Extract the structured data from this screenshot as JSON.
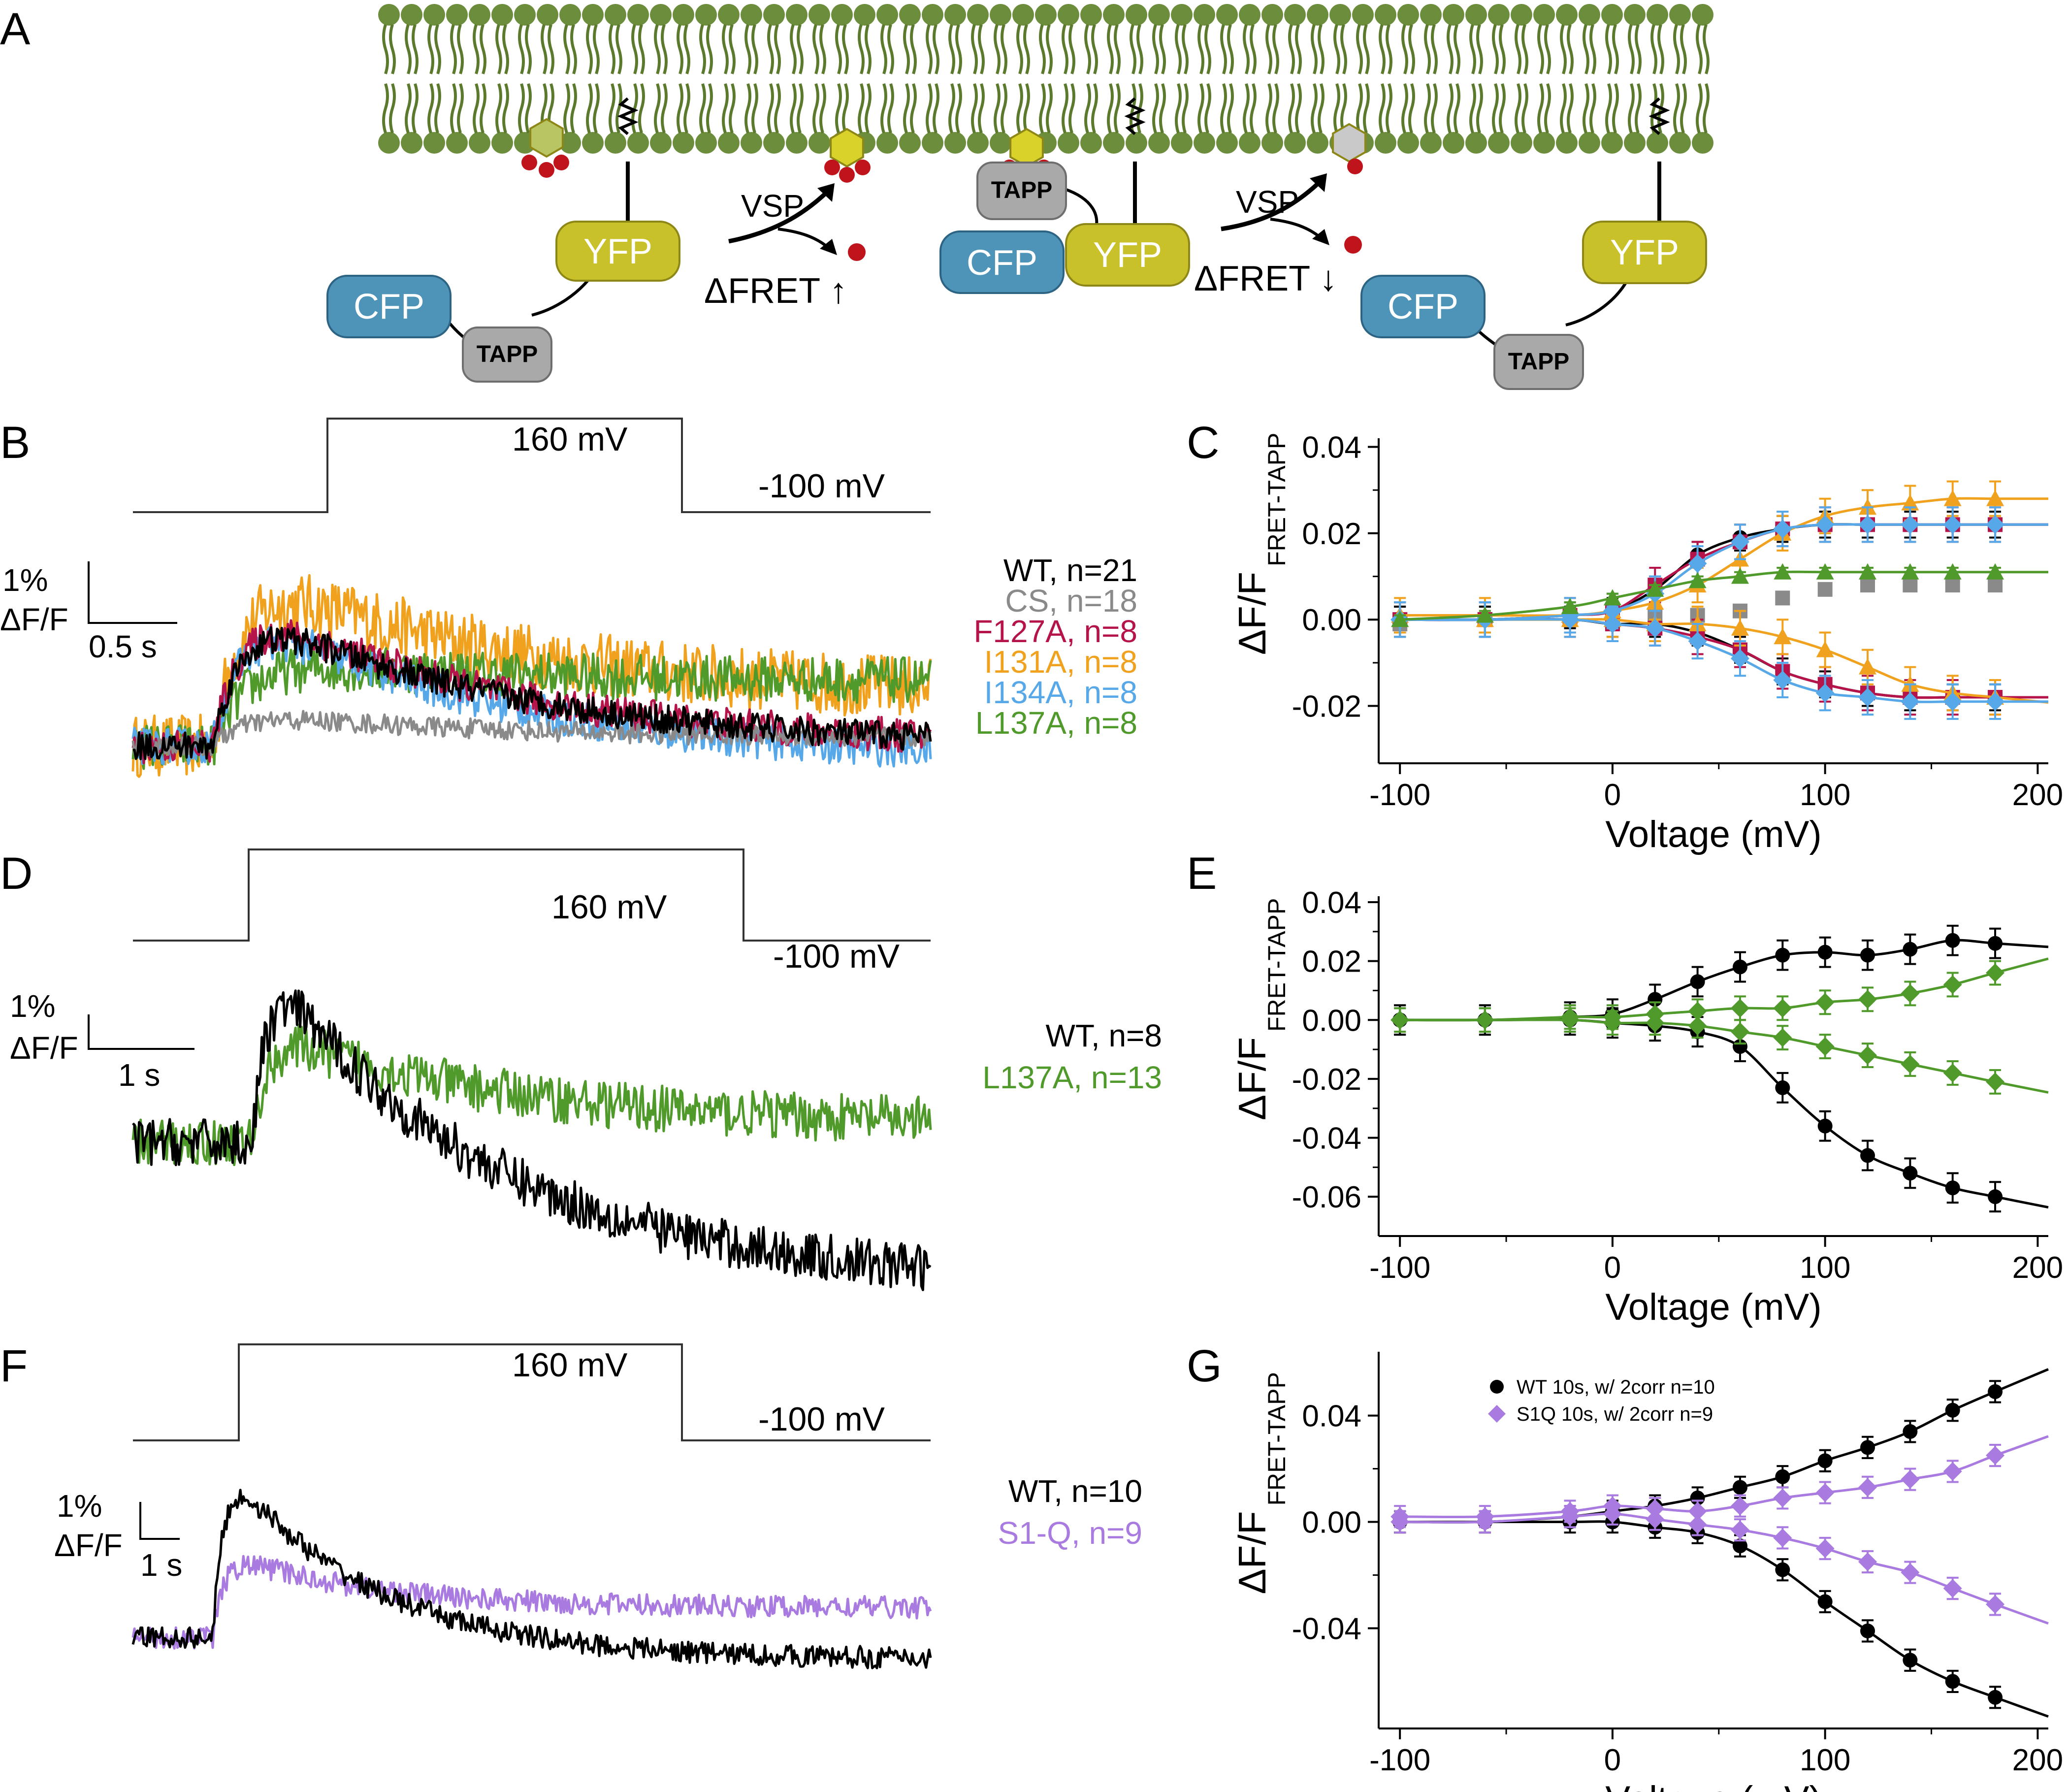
{
  "colors": {
    "membrane": "#5b7a2e",
    "membrane_head": "#6c8d3b",
    "cfp": "#4e93b8",
    "yfp": "#c9c12a",
    "tapp": "#a9a9a9",
    "pip": "#d8d22a",
    "phosphate": "#c0141c",
    "wt": "#000000",
    "cs": "#8a8a8a",
    "f127a": "#b5144a",
    "i131a": "#f0a21e",
    "i134a": "#57a8e8",
    "l137a": "#4f9a2a",
    "s1q": "#a97be0"
  },
  "panel_labels": {
    "a": "A",
    "b": "B",
    "c": "C",
    "d": "D",
    "e": "E",
    "f": "F",
    "g": "G"
  },
  "schematic": {
    "cfp": "CFP",
    "yfp": "YFP",
    "tapp": "TAPP",
    "vsp": "VSP",
    "fret_up": "ΔFRET ↑",
    "fret_down": "ΔFRET ↓"
  },
  "protocol": {
    "step": "160 mV",
    "hold": "-100 mV"
  },
  "scale_bars": {
    "b": {
      "y": "1%",
      "y2": "ΔF/F",
      "x": "0.5 s"
    },
    "d": {
      "y": "1%",
      "y2": "ΔF/F",
      "x": "1 s"
    },
    "f": {
      "y": "1%",
      "y2": "ΔF/F",
      "x": "1 s"
    }
  },
  "legends": {
    "b": [
      {
        "label": "WT, n=21",
        "color": "#000000"
      },
      {
        "label": "CS, n=18",
        "color": "#8a8a8a"
      },
      {
        "label": "F127A, n=8",
        "color": "#b5144a"
      },
      {
        "label": "I131A, n=8",
        "color": "#f0a21e"
      },
      {
        "label": "I134A, n=8",
        "color": "#57a8e8"
      },
      {
        "label": "L137A, n=8",
        "color": "#4f9a2a"
      }
    ],
    "d": [
      {
        "label": "WT, n=8",
        "color": "#000000"
      },
      {
        "label": "L137A, n=13",
        "color": "#4f9a2a"
      }
    ],
    "f": [
      {
        "label": "WT, n=10",
        "color": "#000000"
      },
      {
        "label": "S1-Q, n=9",
        "color": "#a97be0"
      }
    ],
    "g": [
      {
        "label": "WT 10s, w/ 2corr n=10",
        "color": "#000000"
      },
      {
        "label": "S1Q 10s, w/ 2corr n=9",
        "color": "#a97be0"
      }
    ]
  },
  "chart_data": [
    {
      "panel": "C",
      "type": "scatter",
      "xlabel": "Voltage (mV)",
      "ylabel": "ΔF/F",
      "ylabel_sub": "FRET-TAPP",
      "xlim": [
        -110,
        205
      ],
      "ylim": [
        -0.031,
        0.042
      ],
      "xticks": [
        -100,
        0,
        100,
        200
      ],
      "yticks": [
        -0.02,
        0.0,
        0.02,
        0.04
      ],
      "ytick_labels": [
        "-0.02",
        "0.00",
        "0.02",
        "0.04"
      ],
      "x": [
        -100,
        -60,
        -20,
        0,
        20,
        40,
        60,
        80,
        100,
        120,
        140,
        160,
        180
      ],
      "series": [
        {
          "name": "WT",
          "color": "#000000",
          "marker": "circle",
          "up": [
            0.0,
            0.0,
            0.001,
            0.002,
            0.007,
            0.015,
            0.019,
            0.021,
            0.022,
            0.022,
            0.022,
            0.022,
            0.022
          ],
          "down": [
            0.0,
            0.0,
            0.0,
            -0.001,
            -0.001,
            -0.003,
            -0.007,
            -0.012,
            -0.015,
            -0.017,
            -0.018,
            -0.018,
            -0.018
          ],
          "err": 0.003
        },
        {
          "name": "CS",
          "color": "#8a8a8a",
          "marker": "square",
          "up": [
            -0.001,
            0.0,
            0.0,
            0.0,
            0.001,
            0.001,
            0.002,
            0.005,
            0.007,
            0.008,
            0.008,
            0.008,
            0.008
          ],
          "down": null,
          "err": 0.0
        },
        {
          "name": "F127A",
          "color": "#b5144a",
          "marker": "square",
          "up": [
            0.0,
            0.0,
            0.001,
            0.002,
            0.008,
            0.014,
            0.018,
            0.021,
            0.022,
            0.022,
            0.022,
            0.022,
            0.022
          ],
          "down": [
            0.0,
            0.0,
            0.0,
            -0.001,
            -0.002,
            -0.004,
            -0.007,
            -0.012,
            -0.015,
            -0.017,
            -0.018,
            -0.018,
            -0.018
          ],
          "err": 0.004
        },
        {
          "name": "I131A",
          "color": "#f0a21e",
          "marker": "triangle",
          "up": [
            0.001,
            0.001,
            0.001,
            0.002,
            0.004,
            0.008,
            0.014,
            0.02,
            0.024,
            0.026,
            0.027,
            0.028,
            0.028
          ],
          "down": [
            0.0,
            0.0,
            0.0,
            0.0,
            -0.001,
            -0.001,
            -0.002,
            -0.004,
            -0.007,
            -0.011,
            -0.015,
            -0.017,
            -0.018
          ],
          "err": 0.004
        },
        {
          "name": "I134A",
          "color": "#57a8e8",
          "marker": "diamond",
          "up": [
            0.0,
            0.0,
            0.001,
            0.002,
            0.006,
            0.013,
            0.018,
            0.021,
            0.022,
            0.022,
            0.022,
            0.022,
            0.022
          ],
          "down": [
            0.0,
            0.0,
            0.0,
            -0.001,
            -0.002,
            -0.005,
            -0.009,
            -0.014,
            -0.017,
            -0.018,
            -0.019,
            -0.019,
            -0.019
          ],
          "err": 0.004
        },
        {
          "name": "L137A",
          "color": "#4f9a2a",
          "marker": "triangle",
          "up": [
            0.0,
            0.001,
            0.003,
            0.005,
            0.007,
            0.009,
            0.01,
            0.011,
            0.011,
            0.011,
            0.011,
            0.011,
            0.011
          ],
          "down": null,
          "err": 0.001
        }
      ]
    },
    {
      "panel": "E",
      "type": "scatter",
      "xlabel": "Voltage (mV)",
      "ylabel": "ΔF/F",
      "ylabel_sub": "FRET-TAPP",
      "xlim": [
        -110,
        205
      ],
      "ylim": [
        -0.07,
        0.042
      ],
      "xticks": [
        -100,
        0,
        100,
        200
      ],
      "yticks": [
        -0.06,
        -0.04,
        -0.02,
        0.0,
        0.02,
        0.04
      ],
      "ytick_labels": [
        "-0.06",
        "-0.04",
        "-0.02",
        "0.00",
        "0.02",
        "0.04"
      ],
      "x": [
        -100,
        -60,
        -20,
        0,
        20,
        40,
        60,
        80,
        100,
        120,
        140,
        160,
        180
      ],
      "series": [
        {
          "name": "WT",
          "color": "#000000",
          "marker": "circle",
          "up": [
            0.0,
            0.0,
            0.001,
            0.002,
            0.007,
            0.013,
            0.018,
            0.022,
            0.023,
            0.022,
            0.024,
            0.027,
            0.026
          ],
          "down": [
            0.0,
            0.0,
            0.0,
            -0.001,
            -0.002,
            -0.004,
            -0.009,
            -0.023,
            -0.036,
            -0.046,
            -0.052,
            -0.057,
            -0.06
          ],
          "err": 0.005
        },
        {
          "name": "L137A",
          "color": "#4f9a2a",
          "marker": "diamond",
          "up": [
            0.0,
            0.0,
            0.001,
            0.001,
            0.002,
            0.003,
            0.004,
            0.004,
            0.006,
            0.007,
            0.009,
            0.012,
            0.016
          ],
          "down": [
            0.0,
            0.0,
            0.0,
            -0.001,
            -0.001,
            -0.002,
            -0.004,
            -0.006,
            -0.009,
            -0.012,
            -0.015,
            -0.018,
            -0.021
          ],
          "err": 0.004
        }
      ]
    },
    {
      "panel": "G",
      "type": "scatter",
      "xlabel": "Voltage (mV)",
      "ylabel": "ΔF/F",
      "ylabel_sub": "FRET-TAPP",
      "xlim": [
        -110,
        205
      ],
      "ylim": [
        -0.074,
        0.064
      ],
      "xticks": [
        -100,
        0,
        100,
        200
      ],
      "yticks": [
        -0.04,
        0.0,
        0.04
      ],
      "ytick_labels": [
        "-0.04",
        "0.00",
        "0.04"
      ],
      "x": [
        -100,
        -60,
        -20,
        0,
        20,
        40,
        60,
        80,
        100,
        120,
        140,
        160,
        180
      ],
      "series": [
        {
          "name": "WT 10s, w/ 2corr n=10",
          "color": "#000000",
          "marker": "circle",
          "up": [
            0.0,
            0.0,
            0.002,
            0.004,
            0.006,
            0.009,
            0.013,
            0.017,
            0.023,
            0.028,
            0.034,
            0.042,
            0.049
          ],
          "down": [
            0.0,
            0.0,
            0.0,
            0.0,
            -0.002,
            -0.004,
            -0.009,
            -0.018,
            -0.03,
            -0.041,
            -0.052,
            -0.06,
            -0.066
          ],
          "err": 0.004
        },
        {
          "name": "S1Q 10s, w/ 2corr n=9",
          "color": "#a97be0",
          "marker": "diamond",
          "up": [
            0.002,
            0.002,
            0.004,
            0.006,
            0.005,
            0.004,
            0.006,
            0.009,
            0.011,
            0.013,
            0.016,
            0.019,
            0.025
          ],
          "down": [
            0.0,
            0.0,
            0.002,
            0.003,
            0.001,
            -0.001,
            -0.003,
            -0.006,
            -0.01,
            -0.015,
            -0.019,
            -0.025,
            -0.031
          ],
          "err": 0.004
        }
      ]
    },
    {
      "panel": "B",
      "type": "line",
      "series": [
        {
          "name": "I131A",
          "color": "#f0a21e",
          "baseline": 0.0,
          "peak": 1.35,
          "plateau": 0.35,
          "noise": 0.22
        },
        {
          "name": "L137A",
          "color": "#4f9a2a",
          "baseline": 0.0,
          "peak": 0.62,
          "plateau": 0.45,
          "noise": 0.16
        },
        {
          "name": "I134A",
          "color": "#57a8e8",
          "baseline": 0.0,
          "peak": 1.1,
          "plateau": -0.1,
          "noise": 0.13
        },
        {
          "name": "F127A",
          "color": "#b5144a",
          "baseline": 0.0,
          "peak": 1.15,
          "plateau": 0.0,
          "noise": 0.12
        },
        {
          "name": "CS",
          "color": "#8a8a8a",
          "baseline": 0.0,
          "peak": 0.25,
          "plateau": 0.05,
          "noise": 0.07
        },
        {
          "name": "WT",
          "color": "#000000",
          "baseline": 0.0,
          "peak": 1.1,
          "plateau": 0.0,
          "noise": 0.1
        }
      ]
    },
    {
      "panel": "D",
      "type": "line",
      "series": [
        {
          "name": "L137A",
          "color": "#4f9a2a",
          "baseline": 0.0,
          "peak": 1.0,
          "plateau": 0.15,
          "noise": 0.2
        },
        {
          "name": "WT",
          "color": "#000000",
          "baseline": 0.0,
          "peak": 1.7,
          "plateau": -1.2,
          "noise": 0.2
        }
      ]
    },
    {
      "panel": "F",
      "type": "line",
      "series": [
        {
          "name": "S1-Q",
          "color": "#a97be0",
          "baseline": 0.0,
          "peak": 1.2,
          "plateau": 0.4,
          "noise": 0.15
        },
        {
          "name": "WT",
          "color": "#000000",
          "baseline": 0.0,
          "peak": 2.6,
          "plateau": -0.3,
          "noise": 0.15
        }
      ]
    }
  ]
}
